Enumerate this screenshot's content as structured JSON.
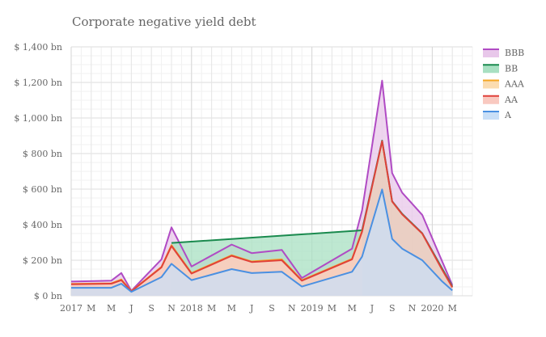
{
  "chart_data": {
    "type": "area",
    "stacked": true,
    "title": "Corporate negative yield debt",
    "xlabel": "",
    "ylabel": "",
    "ylim": [
      0,
      1400
    ],
    "yticks": [
      {
        "value": 0,
        "label": "$ 0 bn"
      },
      {
        "value": 200,
        "label": "$ 200 bn"
      },
      {
        "value": 400,
        "label": "$ 400 bn"
      },
      {
        "value": 600,
        "label": "$ 600 bn"
      },
      {
        "value": 800,
        "label": "$ 800 bn"
      },
      {
        "value": 1000,
        "label": "$ 1,000 bn"
      },
      {
        "value": 1200,
        "label": "$ 1,200 bn"
      },
      {
        "value": 1400,
        "label": "$ 1,400 bn"
      }
    ],
    "xlim": [
      "2017-01",
      "2020-05"
    ],
    "xticks": [
      {
        "date": "2017-01",
        "label": "2017",
        "year": true
      },
      {
        "date": "2017-03",
        "label": "M"
      },
      {
        "date": "2017-05",
        "label": "M"
      },
      {
        "date": "2017-07",
        "label": "J"
      },
      {
        "date": "2017-09",
        "label": "S"
      },
      {
        "date": "2017-11",
        "label": "N"
      },
      {
        "date": "2018-01",
        "label": "2018",
        "year": true
      },
      {
        "date": "2018-03",
        "label": "M"
      },
      {
        "date": "2018-05",
        "label": "M"
      },
      {
        "date": "2018-07",
        "label": "J"
      },
      {
        "date": "2018-09",
        "label": "S"
      },
      {
        "date": "2018-11",
        "label": "N"
      },
      {
        "date": "2019-01",
        "label": "2019",
        "year": true
      },
      {
        "date": "2019-03",
        "label": "M"
      },
      {
        "date": "2019-05",
        "label": "M"
      },
      {
        "date": "2019-07",
        "label": "J"
      },
      {
        "date": "2019-09",
        "label": "S"
      },
      {
        "date": "2019-11",
        "label": "N"
      },
      {
        "date": "2020-01",
        "label": "2020",
        "year": true
      },
      {
        "date": "2020-03",
        "label": "M"
      }
    ],
    "grid": true,
    "legend_position": "right",
    "series": [
      {
        "name": "A",
        "line_color": "#4a90e2",
        "fill_color": "#c9dff7",
        "points": [
          [
            "2017-01",
            45
          ],
          [
            "2017-05",
            45
          ],
          [
            "2017-06",
            68
          ],
          [
            "2017-07",
            22
          ],
          [
            "2017-10",
            105
          ],
          [
            "2017-11",
            180
          ],
          [
            "2018-01",
            88
          ],
          [
            "2018-05",
            150
          ],
          [
            "2018-07",
            128
          ],
          [
            "2018-10",
            135
          ],
          [
            "2018-12",
            52
          ],
          [
            "2019-05",
            135
          ],
          [
            "2019-06",
            220
          ],
          [
            "2019-08",
            598
          ],
          [
            "2019-09",
            320
          ],
          [
            "2019-10",
            265
          ],
          [
            "2019-12",
            200
          ],
          [
            "2020-02",
            80
          ],
          [
            "2020-03",
            30
          ]
        ]
      },
      {
        "name": "AA",
        "line_color": "#e0413a",
        "fill_color": "#f9c9c0",
        "points": [
          [
            "2017-01",
            65
          ],
          [
            "2017-05",
            68
          ],
          [
            "2017-06",
            88
          ],
          [
            "2017-07",
            25
          ],
          [
            "2017-10",
            160
          ],
          [
            "2017-11",
            280
          ],
          [
            "2018-01",
            125
          ],
          [
            "2018-05",
            225
          ],
          [
            "2018-07",
            190
          ],
          [
            "2018-10",
            200
          ],
          [
            "2018-12",
            85
          ],
          [
            "2019-05",
            205
          ],
          [
            "2019-06",
            360
          ],
          [
            "2019-08",
            870
          ],
          [
            "2019-09",
            530
          ],
          [
            "2019-10",
            458
          ],
          [
            "2019-12",
            350
          ],
          [
            "2020-02",
            145
          ],
          [
            "2020-03",
            48
          ]
        ]
      },
      {
        "name": "AAA",
        "line_color": "#f5a623",
        "fill_color": "#fbdcb0",
        "points": [
          [
            "2017-01",
            67
          ],
          [
            "2017-05",
            70
          ],
          [
            "2017-06",
            92
          ],
          [
            "2017-07",
            26
          ],
          [
            "2017-10",
            163
          ],
          [
            "2017-11",
            285
          ],
          [
            "2018-01",
            128
          ],
          [
            "2018-05",
            228
          ],
          [
            "2018-07",
            193
          ],
          [
            "2018-10",
            205
          ],
          [
            "2018-12",
            88
          ],
          [
            "2019-05",
            208
          ],
          [
            "2019-06",
            365
          ]
        ]
      },
      {
        "name": "BB",
        "line_color": "#1a8a4e",
        "fill_color": "#a8e0c2",
        "points": [
          [
            "2017-11",
            297
          ],
          [
            "2019-06",
            368
          ],
          [
            "2019-08",
            873
          ],
          [
            "2019-09",
            532
          ],
          [
            "2019-10",
            461
          ],
          [
            "2019-12",
            352
          ],
          [
            "2020-03",
            52
          ]
        ]
      },
      {
        "name": "BBB",
        "line_color": "#b04bc4",
        "fill_color": "#e8c7ea",
        "points": [
          [
            "2017-01",
            80
          ],
          [
            "2017-05",
            85
          ],
          [
            "2017-06",
            128
          ],
          [
            "2017-07",
            28
          ],
          [
            "2017-10",
            205
          ],
          [
            "2017-11",
            385
          ],
          [
            "2018-01",
            165
          ],
          [
            "2018-05",
            288
          ],
          [
            "2018-07",
            240
          ],
          [
            "2018-10",
            258
          ],
          [
            "2018-12",
            100
          ],
          [
            "2019-05",
            265
          ],
          [
            "2019-06",
            480
          ],
          [
            "2019-08",
            1210
          ],
          [
            "2019-09",
            690
          ],
          [
            "2019-10",
            580
          ],
          [
            "2019-12",
            455
          ],
          [
            "2020-03",
            60
          ]
        ]
      }
    ]
  }
}
